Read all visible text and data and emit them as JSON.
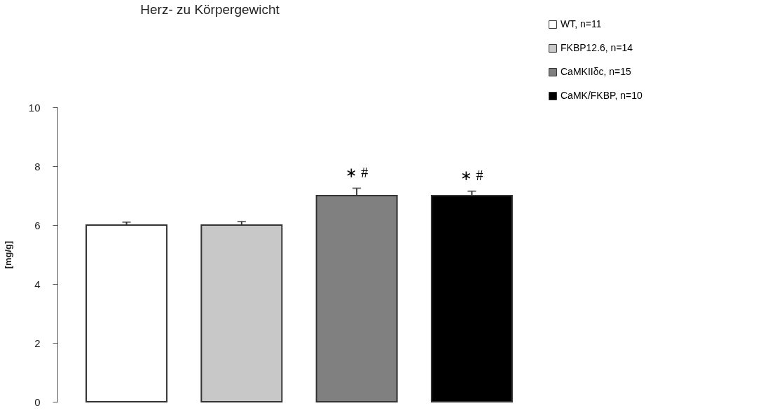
{
  "chart_data": {
    "type": "bar",
    "title": "Herz- zu Körpergewicht",
    "ylabel": "[mg/g]",
    "categories": [
      null,
      null,
      null,
      null
    ],
    "series": [
      {
        "name": "WT, n=11",
        "color": "#ffffff",
        "values": [
          6,
          null,
          null,
          null
        ],
        "errors": [
          0.1,
          null,
          null,
          null
        ],
        "value_labels": [
          null,
          null,
          null,
          null
        ]
      },
      {
        "name": "FKBP12.6, n=14",
        "color": "#c8c8c8",
        "values": [
          null,
          6,
          null,
          null
        ],
        "errors": [
          null,
          0.12,
          null,
          null
        ],
        "value_labels": [
          null,
          null,
          null,
          null
        ]
      },
      {
        "name": "CaMKIIδc, n=15",
        "color": "#808080",
        "values": [
          null,
          null,
          7,
          null
        ],
        "errors": [
          null,
          null,
          0.25,
          null
        ],
        "value_labels": [
          null,
          null,
          "∗   #",
          null
        ]
      },
      {
        "name": "CaMK/FKBP, n=10",
        "color": "#000000",
        "values": [
          null,
          null,
          null,
          7
        ],
        "errors": [
          null,
          null,
          null,
          0.15
        ],
        "value_labels": [
          null,
          null,
          null,
          "∗   #"
        ]
      }
    ],
    "stacked": true,
    "ylim": [
      0,
      10
    ],
    "yticks": [
      0,
      2,
      4,
      6,
      8,
      10
    ],
    "grid": false,
    "legend": "top right",
    "tick_labels": "y"
  }
}
